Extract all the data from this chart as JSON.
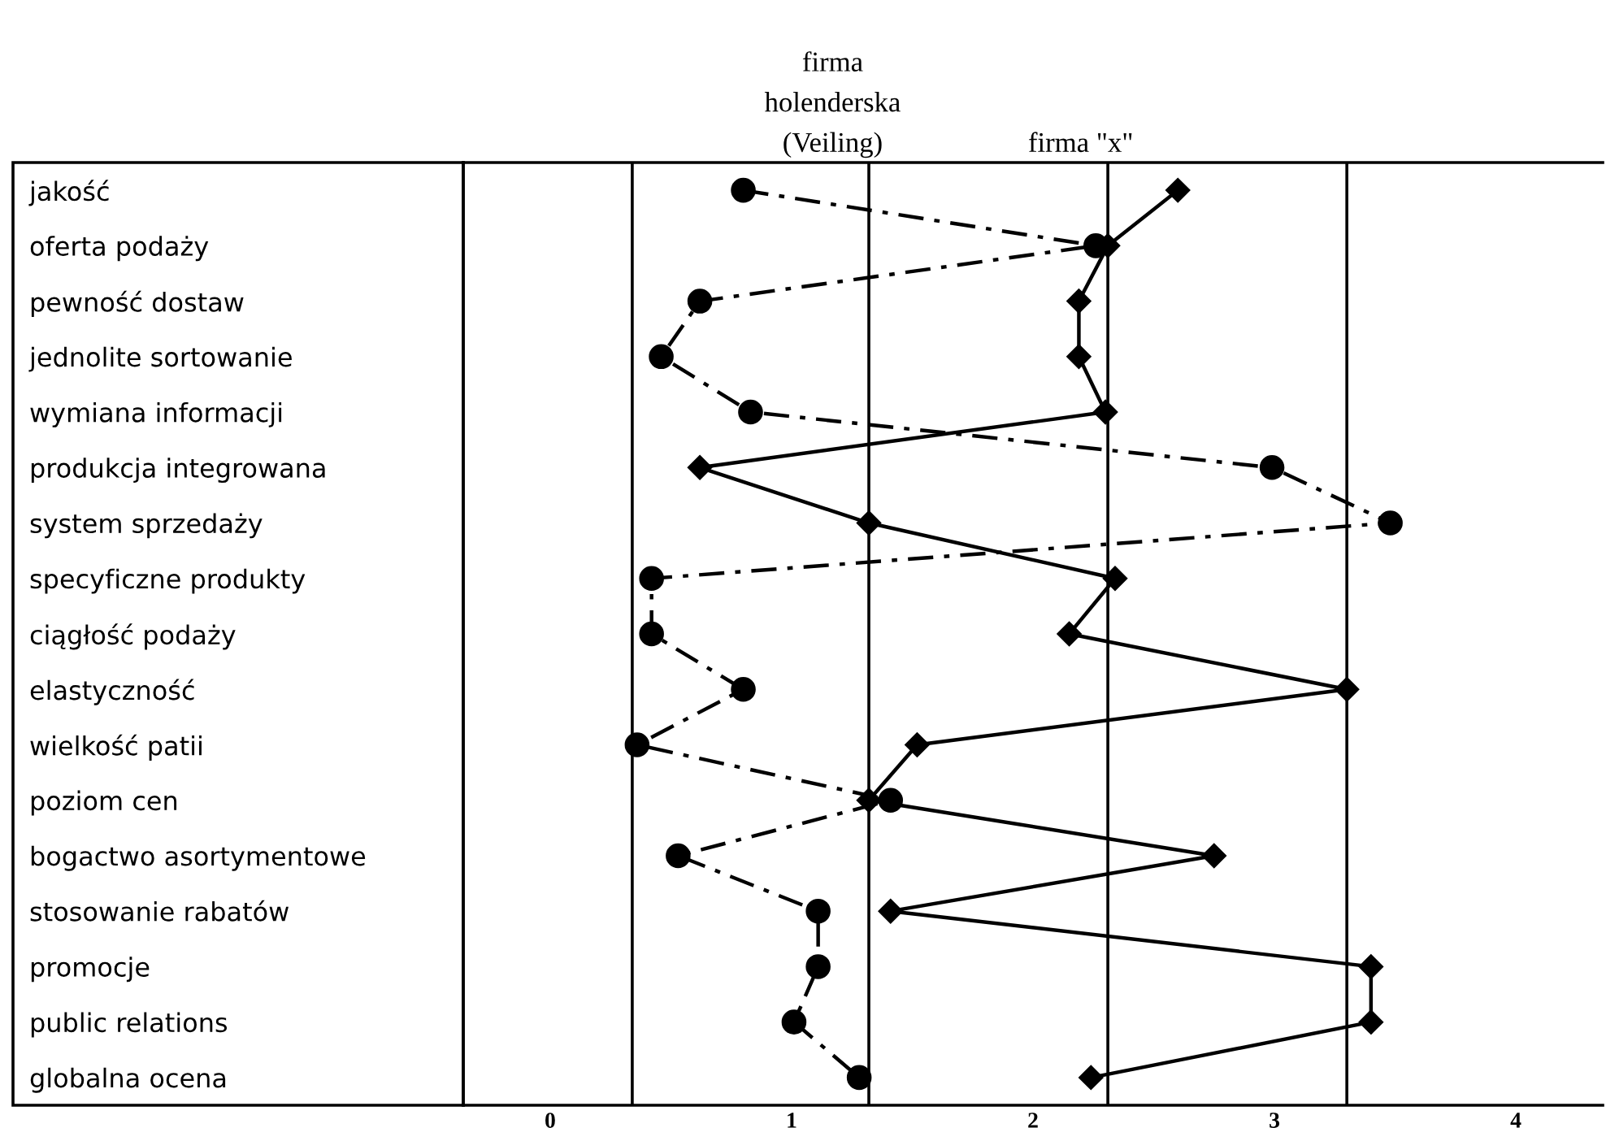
{
  "chart_data": {
    "type": "line",
    "categories": [
      "jakość",
      "oferta podaży",
      "pewność dostaw",
      "jednolite sortowanie",
      "wymiana informacji",
      "produkcja integrowana",
      "system sprzedaży",
      "specyficzne produkty",
      "ciągłość podaży",
      "elastyczność",
      "wielkość patii",
      "poziom cen",
      "bogactwo asortymentowe",
      "stosowanie rabatów",
      "promocje",
      "public relations",
      "globalna ocena"
    ],
    "orientation": "horizontal",
    "series": [
      {
        "name": "firma\nholenderska\n(Veiling)",
        "color": "#000000",
        "marker": "circle",
        "line_style": "dashed",
        "values": [
          0.8,
          2.26,
          0.62,
          0.46,
          0.83,
          2.99,
          3.48,
          0.42,
          0.42,
          0.8,
          0.36,
          1.41,
          0.53,
          1.11,
          1.11,
          1.01,
          1.28
        ]
      },
      {
        "name": "firma \"x\"",
        "color": "#000000",
        "marker": "diamond",
        "line_style": "solid",
        "values": [
          2.6,
          2.31,
          2.19,
          2.19,
          2.3,
          0.62,
          1.32,
          2.34,
          2.15,
          3.3,
          1.52,
          1.32,
          2.75,
          1.41,
          3.4,
          3.4,
          2.24
        ]
      }
    ],
    "xlim": [
      -0.36,
      4.36
    ],
    "xticks": [
      0,
      1,
      2,
      3,
      4
    ],
    "ref_lines": [
      {
        "axis": "x",
        "value": 0.34,
        "color": "#000000"
      },
      {
        "axis": "x",
        "value": 1.32,
        "color": "#000000"
      },
      {
        "axis": "x",
        "value": 2.31,
        "color": "#000000"
      },
      {
        "axis": "x",
        "value": 3.3,
        "color": "#000000"
      }
    ],
    "grid": false,
    "legend": false
  }
}
